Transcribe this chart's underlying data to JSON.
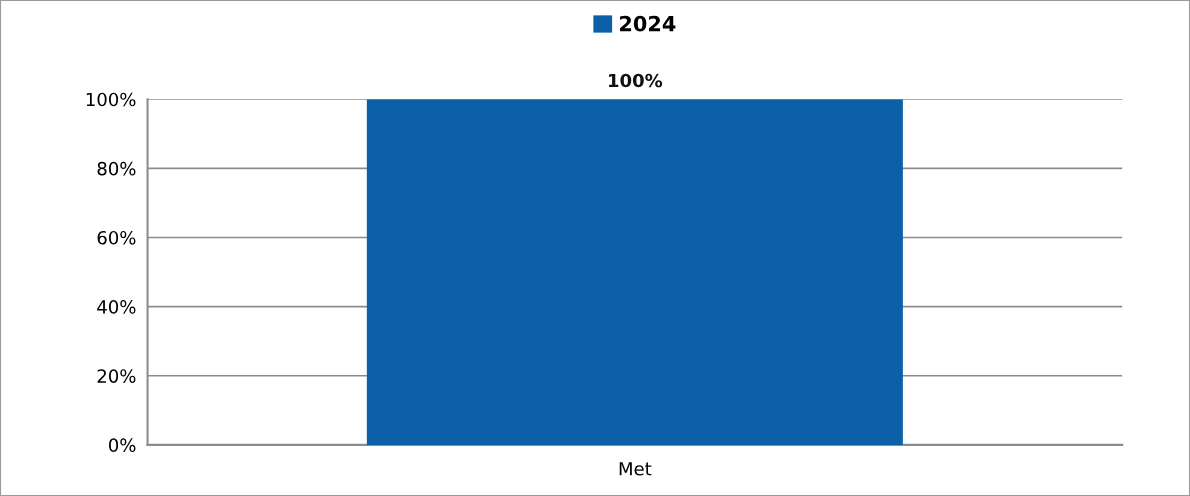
{
  "chart_data": {
    "type": "bar",
    "categories": [
      "Met"
    ],
    "series": [
      {
        "name": "2024",
        "color": "#0b60a8",
        "values": [
          100
        ],
        "value_labels": [
          "100%"
        ]
      }
    ],
    "ylim": [
      0,
      100
    ],
    "yticks": [
      {
        "value": 0,
        "label": "0%"
      },
      {
        "value": 20,
        "label": "20%"
      },
      {
        "value": 40,
        "label": "40%"
      },
      {
        "value": 60,
        "label": "60%"
      },
      {
        "value": 80,
        "label": "80%"
      },
      {
        "value": 100,
        "label": "100%"
      }
    ],
    "grid": "y",
    "legend": "top"
  }
}
